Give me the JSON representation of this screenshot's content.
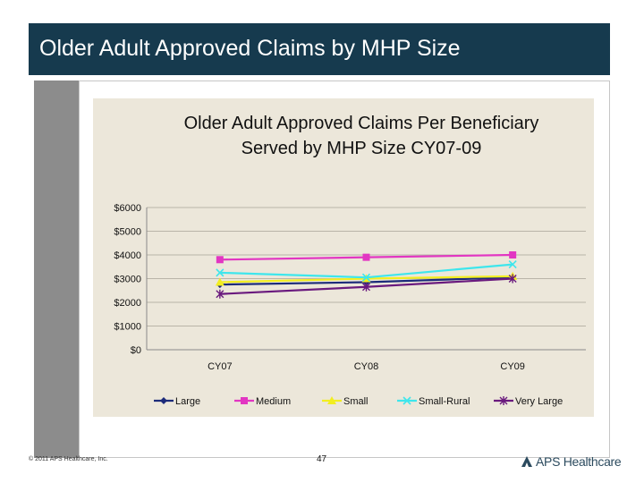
{
  "slide": {
    "title": "Older Adult Approved Claims by MHP Size",
    "footer_left": "© 2011 APS Healthcare, Inc.",
    "page_number": "47",
    "logo_text": "APS Healthcare",
    "colors": {
      "title_bar": "#163a4e",
      "left_bar": "#8c8c8c",
      "chart_bg": "#ece7da"
    }
  },
  "chart_data": {
    "type": "line",
    "title_line1": "Older Adult Approved Claims Per Beneficiary",
    "title_line2": "Served by MHP Size CY07-09",
    "categories": [
      "CY07",
      "CY08",
      "CY09"
    ],
    "y_ticks": [
      "$0",
      "$1000",
      "$2000",
      "$3000",
      "$4000",
      "$5000",
      "$6000"
    ],
    "ylim": [
      0,
      6000
    ],
    "grid": true,
    "legend_position": "bottom",
    "series": [
      {
        "name": "Large",
        "values": [
          2750,
          2850,
          3050
        ],
        "color": "#1c2b7a",
        "marker": "diamond"
      },
      {
        "name": "Medium",
        "values": [
          3800,
          3900,
          4000
        ],
        "color": "#e236c2",
        "marker": "square"
      },
      {
        "name": "Small",
        "values": [
          2850,
          3000,
          3100
        ],
        "color": "#f2ee20",
        "marker": "triangle"
      },
      {
        "name": "Small-Rural",
        "values": [
          3250,
          3050,
          3600
        ],
        "color": "#3ee6ec",
        "marker": "x"
      },
      {
        "name": "Very Large",
        "values": [
          2350,
          2650,
          3000
        ],
        "color": "#6a1a7e",
        "marker": "star"
      }
    ]
  }
}
